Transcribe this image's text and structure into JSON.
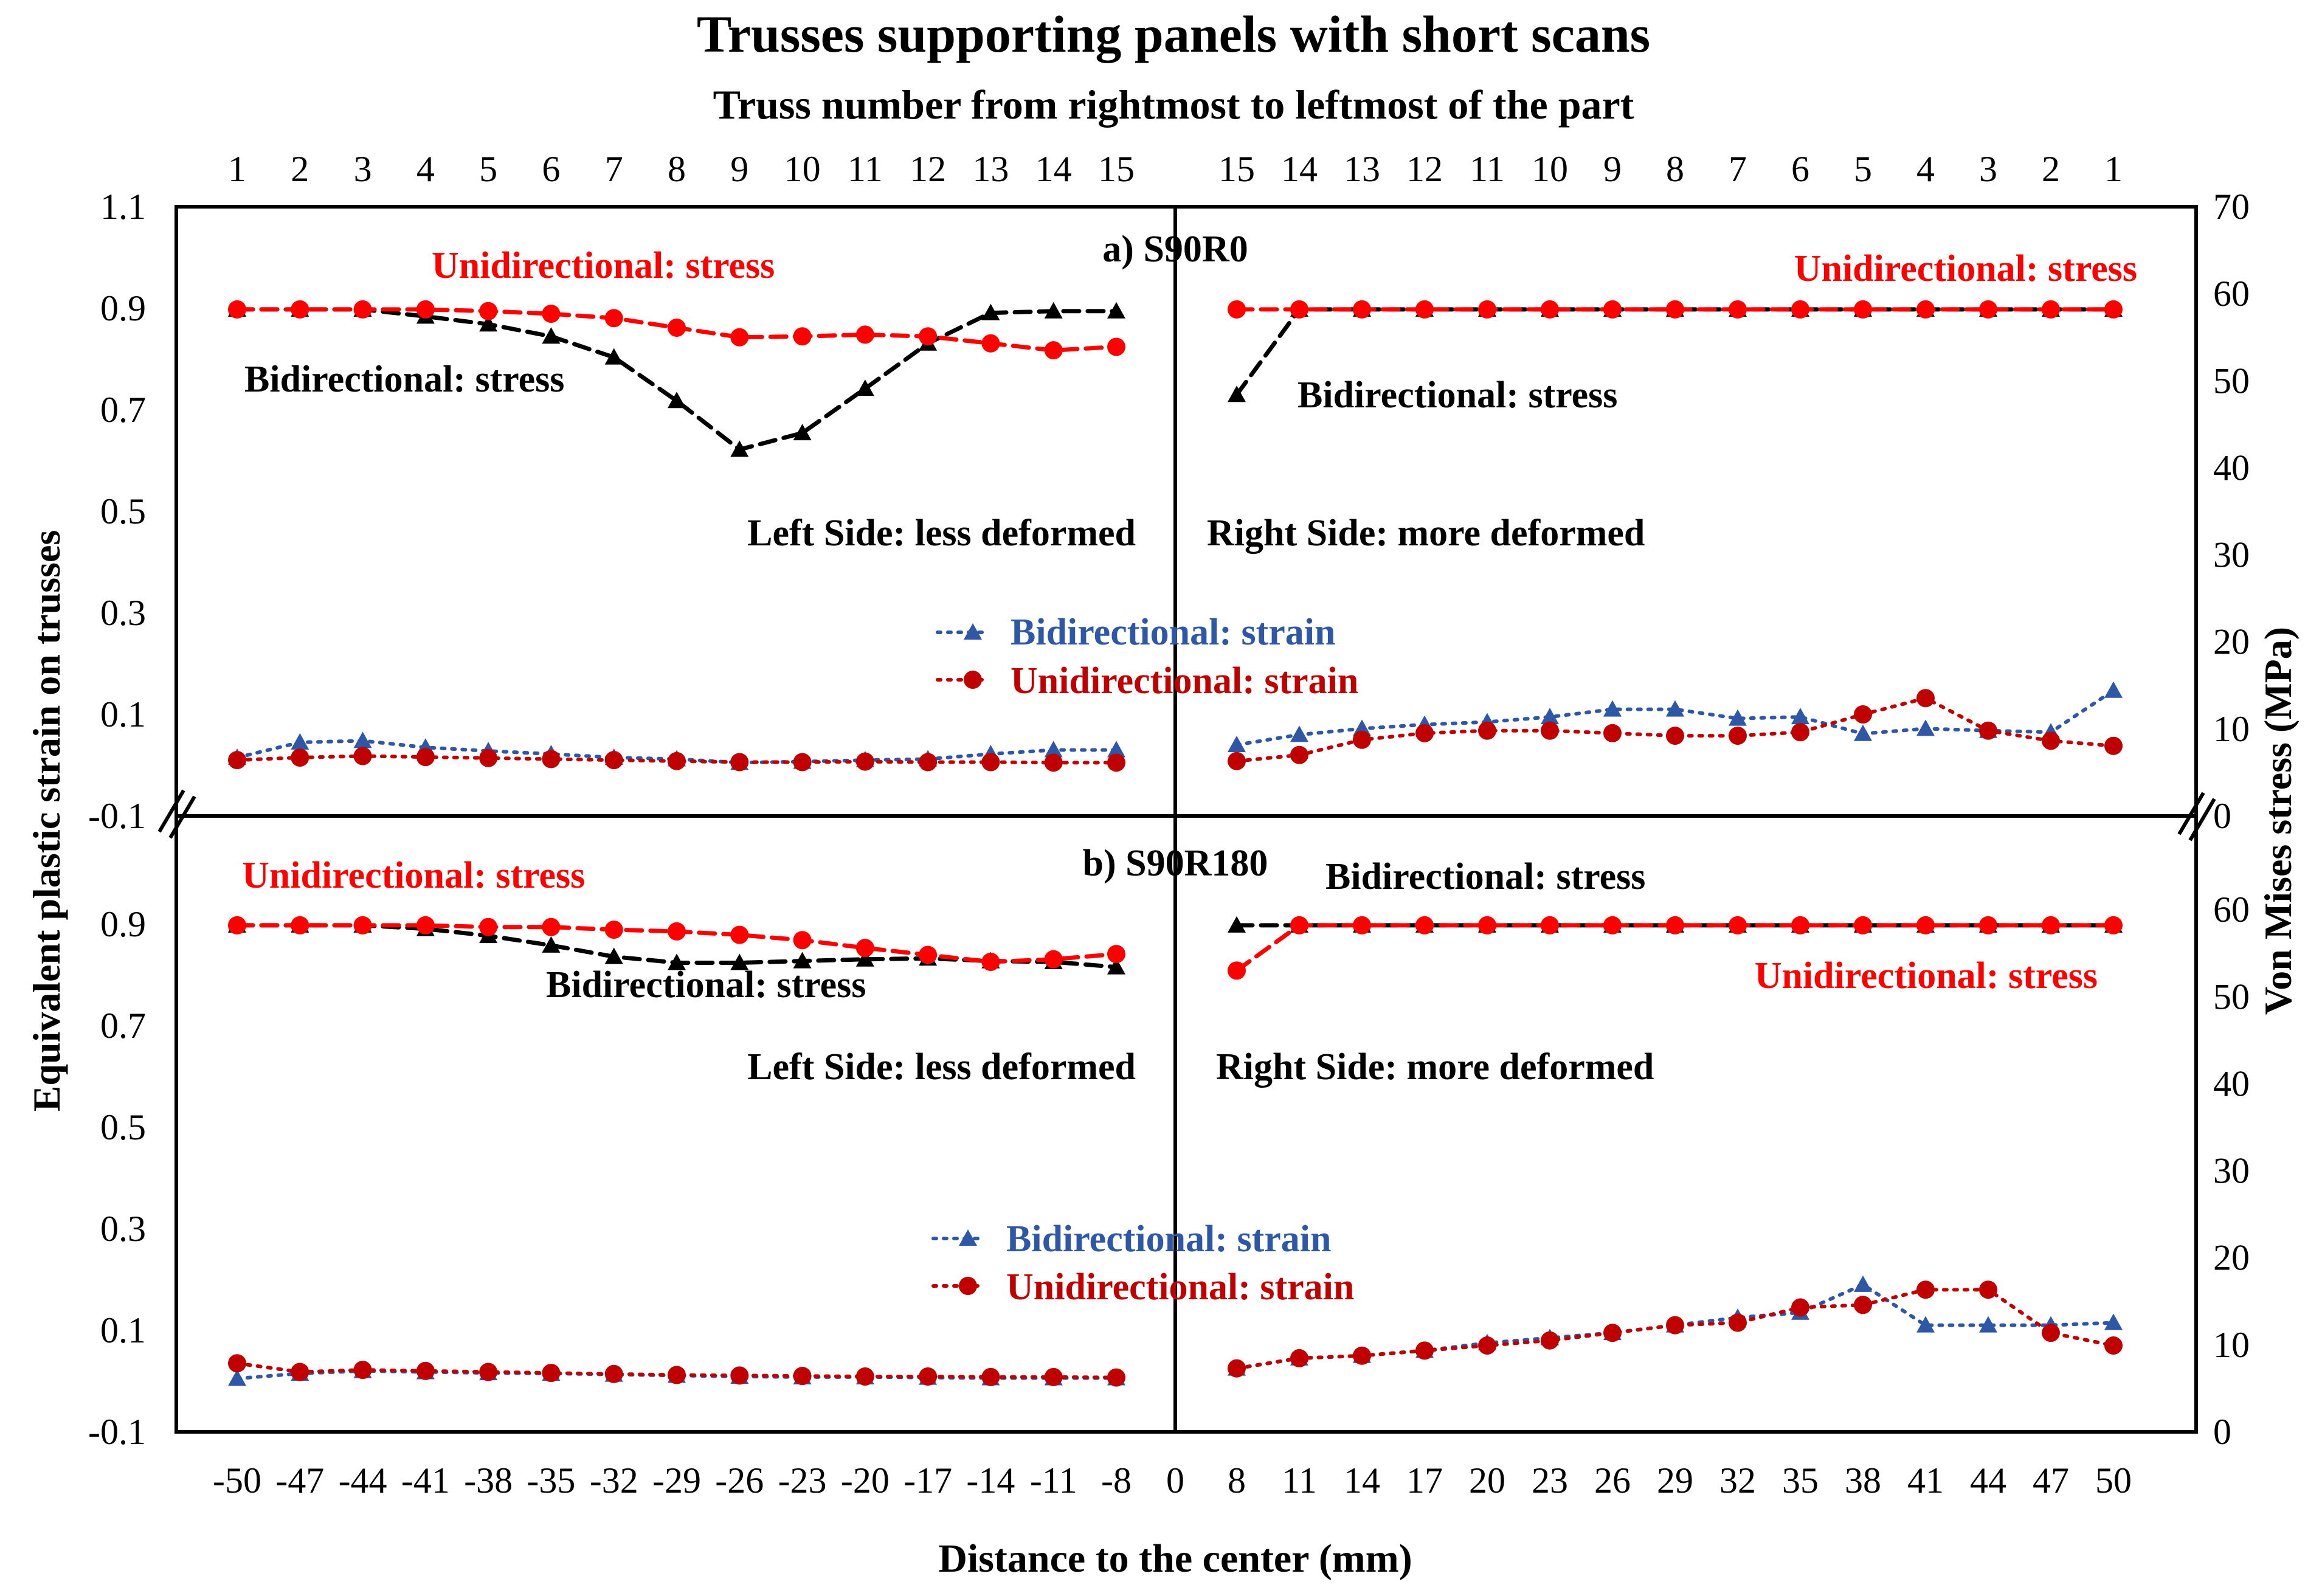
{
  "chart_data": {
    "type": "line",
    "title": "Trusses supporting panels with short scans",
    "top_axis_label": "Truss number from rightmost to leftmost of the part",
    "top_ticks": [
      "1",
      "2",
      "3",
      "4",
      "5",
      "6",
      "7",
      "8",
      "9",
      "10",
      "11",
      "12",
      "13",
      "14",
      "15",
      "15",
      "14",
      "13",
      "12",
      "11",
      "10",
      "9",
      "8",
      "7",
      "6",
      "5",
      "4",
      "3",
      "2",
      "1"
    ],
    "xlabel": "Distance to the center (mm)",
    "x_ticks": [
      "-50",
      "-47",
      "-44",
      "-41",
      "-38",
      "-35",
      "-32",
      "-29",
      "-26",
      "-23",
      "-20",
      "-17",
      "-14",
      "-11",
      "-8",
      "0",
      "8",
      "11",
      "14",
      "17",
      "20",
      "23",
      "26",
      "29",
      "32",
      "35",
      "38",
      "41",
      "44",
      "47",
      "50"
    ],
    "ylabel_left": "Equivalent plastic strain on trusses",
    "ylabel_right": "Von Mises stress (MPa)",
    "left_ticks_top": [
      "1.1",
      "0.9",
      "0.7",
      "0.5",
      "0.3",
      "0.1",
      "-0.1"
    ],
    "left_ticks_bottom": [
      "0.9",
      "0.7",
      "0.5",
      "0.3",
      "0.1",
      "-0.1"
    ],
    "right_ticks_top": [
      "70",
      "60",
      "50",
      "40",
      "30",
      "20",
      "10",
      "0"
    ],
    "right_ticks_bottom": [
      "60",
      "50",
      "40",
      "30",
      "20",
      "10",
      "0"
    ],
    "x_positions_left": [
      -50,
      -47,
      -44,
      -41,
      -38,
      -35,
      -32,
      -29,
      -26,
      -23,
      -20,
      -17,
      -14,
      -11,
      -8
    ],
    "x_positions_right": [
      8,
      11,
      14,
      17,
      20,
      23,
      26,
      29,
      32,
      35,
      38,
      41,
      44,
      47,
      50
    ],
    "colors": {
      "bi_stress": "#000000",
      "uni_stress": "#ff0000",
      "bi_strain": "#2e58a6",
      "uni_strain": "#c00000",
      "uni_label": "#ff0000",
      "bi_strain_label": "#2e58a6",
      "uni_strain_label": "#c00000"
    },
    "panels": [
      {
        "name": "a) S90R0",
        "ylim_left": [
          -0.1,
          1.1
        ],
        "ylim_right": [
          0,
          70
        ],
        "series": [
          {
            "name": "Bidirectional: stress",
            "axis": "right",
            "style": "dashed",
            "marker": "triangle",
            "color": "#000000",
            "left": [
              58.2,
              58.2,
              58.2,
              57.4,
              56.5,
              55.1,
              52.7,
              47.7,
              42.1,
              44.0,
              49.1,
              54.3,
              57.8,
              58.0,
              58.0
            ],
            "right": [
              48.4,
              58.2,
              58.2,
              58.2,
              58.2,
              58.2,
              58.2,
              58.2,
              58.2,
              58.2,
              58.2,
              58.2,
              58.2,
              58.2,
              58.2
            ]
          },
          {
            "name": "Unidirectional: stress",
            "axis": "right",
            "style": "dashed",
            "marker": "circle",
            "color": "#ff0000",
            "left": [
              58.2,
              58.2,
              58.2,
              58.2,
              58.0,
              57.7,
              57.2,
              56.1,
              55.0,
              55.1,
              55.3,
              55.1,
              54.3,
              53.5,
              53.9
            ],
            "right": [
              58.2,
              58.2,
              58.2,
              58.2,
              58.2,
              58.2,
              58.2,
              58.2,
              58.2,
              58.2,
              58.2,
              58.2,
              58.2,
              58.2,
              58.2
            ]
          },
          {
            "name": "Bidirectional: strain",
            "axis": "left",
            "style": "dotted",
            "marker": "triangle",
            "color": "#2e58a6",
            "left": [
              0.015,
              0.045,
              0.048,
              0.035,
              0.028,
              0.022,
              0.015,
              0.012,
              0.005,
              0.007,
              0.01,
              0.012,
              0.022,
              0.03,
              0.03
            ],
            "right": [
              0.04,
              0.06,
              0.072,
              0.08,
              0.085,
              0.095,
              0.11,
              0.11,
              0.092,
              0.095,
              0.062,
              0.072,
              0.068,
              0.065,
              0.147
            ]
          },
          {
            "name": "Unidirectional: strain",
            "axis": "left",
            "style": "dotted",
            "marker": "circle",
            "color": "#c00000",
            "left": [
              0.01,
              0.015,
              0.018,
              0.016,
              0.014,
              0.012,
              0.01,
              0.008,
              0.006,
              0.006,
              0.007,
              0.006,
              0.006,
              0.005,
              0.005
            ],
            "right": [
              0.008,
              0.02,
              0.05,
              0.063,
              0.068,
              0.068,
              0.063,
              0.058,
              0.058,
              0.065,
              0.1,
              0.132,
              0.068,
              0.048,
              0.038
            ]
          }
        ],
        "annotations": {
          "uni_stress_left": "Unidirectional: stress",
          "uni_stress_right": "Unidirectional: stress",
          "bi_stress_left": "Bidirectional: stress",
          "bi_stress_right": "Bidirectional: stress",
          "left_side": "Left Side: less deformed",
          "right_side": "Right Side: more deformed",
          "legend_bi_strain": "Bidirectional: strain",
          "legend_uni_strain": "Unidirectional: strain"
        }
      },
      {
        "name": "b) S90R180",
        "ylim_left": [
          -0.1,
          1.1
        ],
        "ylim_right": [
          0,
          70
        ],
        "series": [
          {
            "name": "Bidirectional: stress",
            "axis": "right",
            "style": "dashed",
            "marker": "triangle",
            "color": "#000000",
            "left": [
              58.2,
              58.2,
              58.2,
              57.8,
              57.0,
              55.9,
              54.6,
              53.9,
              53.9,
              54.1,
              54.3,
              54.4,
              54.1,
              54.0,
              53.4
            ],
            "right": [
              58.2,
              58.2,
              58.2,
              58.2,
              58.2,
              58.2,
              58.2,
              58.2,
              58.2,
              58.2,
              58.2,
              58.2,
              58.2,
              58.2,
              58.2
            ]
          },
          {
            "name": "Unidirectional: stress",
            "axis": "right",
            "style": "dashed",
            "marker": "circle",
            "color": "#ff0000",
            "left": [
              58.2,
              58.2,
              58.2,
              58.2,
              58.0,
              58.0,
              57.7,
              57.5,
              57.1,
              56.5,
              55.6,
              54.8,
              54.0,
              54.3,
              54.9
            ],
            "right": [
              53.0,
              58.2,
              58.2,
              58.2,
              58.2,
              58.2,
              58.2,
              58.2,
              58.2,
              58.2,
              58.2,
              58.2,
              58.2,
              58.2,
              58.2
            ]
          },
          {
            "name": "Bidirectional: strain",
            "axis": "left",
            "style": "dotted",
            "marker": "triangle",
            "color": "#2e58a6",
            "left": [
              0.005,
              0.015,
              0.02,
              0.018,
              0.016,
              0.015,
              0.013,
              0.011,
              0.009,
              0.008,
              0.008,
              0.007,
              0.006,
              0.006,
              0.006
            ],
            "right": [
              0.025,
              0.045,
              0.05,
              0.06,
              0.075,
              0.085,
              0.095,
              0.11,
              0.125,
              0.135,
              0.19,
              0.11,
              0.11,
              0.11,
              0.115
            ]
          },
          {
            "name": "Unidirectional: strain",
            "axis": "left",
            "style": "dotted",
            "marker": "circle",
            "color": "#c00000",
            "left": [
              0.035,
              0.018,
              0.022,
              0.02,
              0.018,
              0.016,
              0.014,
              0.012,
              0.011,
              0.01,
              0.009,
              0.009,
              0.008,
              0.008,
              0.007
            ],
            "right": [
              0.025,
              0.045,
              0.05,
              0.06,
              0.07,
              0.08,
              0.095,
              0.11,
              0.115,
              0.145,
              0.15,
              0.18,
              0.18,
              0.095,
              0.07
            ]
          }
        ],
        "annotations": {
          "uni_stress_left": "Unidirectional: stress",
          "uni_stress_right": "Unidirectional: stress",
          "bi_stress_left": "Bidirectional: stress",
          "bi_stress_right": "Bidirectional: stress",
          "left_side": "Left Side: less deformed",
          "right_side": "Right Side: more deformed",
          "legend_bi_strain": "Bidirectional: strain",
          "legend_uni_strain": "Unidirectional: strain"
        }
      }
    ]
  }
}
